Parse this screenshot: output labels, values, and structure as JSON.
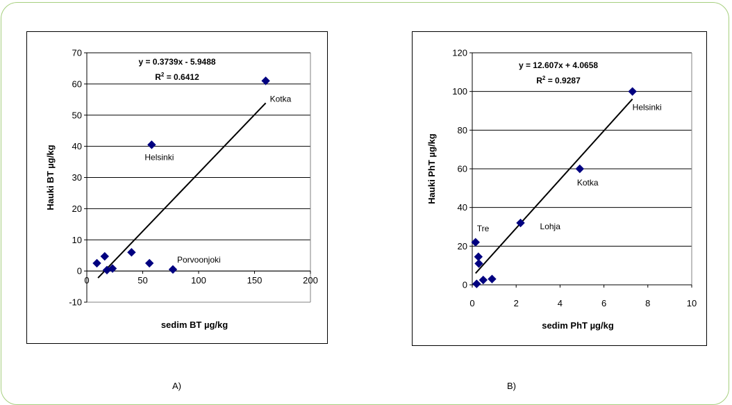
{
  "captions": [
    "A)",
    "B)"
  ],
  "chart_data": [
    {
      "type": "scatter",
      "xlabel": "sedim BT µg/kg",
      "ylabel": "Hauki BT µg/kg",
      "xlim": [
        0,
        200
      ],
      "ylim": [
        -10,
        70
      ],
      "xticks": [
        0,
        50,
        100,
        150,
        200
      ],
      "yticks": [
        -10,
        0,
        10,
        20,
        30,
        40,
        50,
        60,
        70
      ],
      "grid": "horizontal",
      "marker_color": "#000080",
      "points": [
        {
          "x": 9,
          "y": 2.5,
          "label": ""
        },
        {
          "x": 16,
          "y": 4.7,
          "label": ""
        },
        {
          "x": 18,
          "y": 0.3,
          "label": ""
        },
        {
          "x": 23,
          "y": 0.8,
          "label": ""
        },
        {
          "x": 40,
          "y": 6,
          "label": ""
        },
        {
          "x": 56,
          "y": 2.5,
          "label": ""
        },
        {
          "x": 58,
          "y": 40.5,
          "label": "Helsinki"
        },
        {
          "x": 77,
          "y": 0.5,
          "label": "Porvoonjoki"
        },
        {
          "x": 160,
          "y": 61,
          "label": "Kotka"
        }
      ],
      "trendline": {
        "slope": 0.3739,
        "intercept": -5.9488,
        "x_range": [
          10,
          160
        ]
      },
      "equation": "y = 0.3739x - 5.9488",
      "r2_prefix": "R",
      "r2_sup": "2",
      "r2_suffix": " = 0.6412"
    },
    {
      "type": "scatter",
      "xlabel": "sedim PhT µg/kg",
      "ylabel": "Hauki PhT µg/kg",
      "xlim": [
        0,
        10
      ],
      "ylim": [
        0,
        120
      ],
      "xticks": [
        0,
        2,
        4,
        6,
        8,
        10
      ],
      "yticks": [
        0,
        20,
        40,
        60,
        80,
        100,
        120
      ],
      "grid": "horizontal",
      "marker_color": "#000080",
      "points": [
        {
          "x": 0.15,
          "y": 22,
          "label": "Tre"
        },
        {
          "x": 0.2,
          "y": 0.5,
          "label": ""
        },
        {
          "x": 0.28,
          "y": 14.5,
          "label": ""
        },
        {
          "x": 0.3,
          "y": 11,
          "label": ""
        },
        {
          "x": 0.5,
          "y": 2.5,
          "label": ""
        },
        {
          "x": 0.9,
          "y": 3,
          "label": ""
        },
        {
          "x": 2.2,
          "y": 32,
          "label": "Lohja"
        },
        {
          "x": 4.9,
          "y": 60,
          "label": "Kotka"
        },
        {
          "x": 7.3,
          "y": 100,
          "label": "Helsinki"
        }
      ],
      "trendline": {
        "slope": 12.607,
        "intercept": 4.0658,
        "x_range": [
          0.15,
          7.3
        ]
      },
      "equation": "y = 12.607x + 4.0658",
      "r2_prefix": "R",
      "r2_sup": "2",
      "r2_suffix": " = 0.9287"
    }
  ]
}
